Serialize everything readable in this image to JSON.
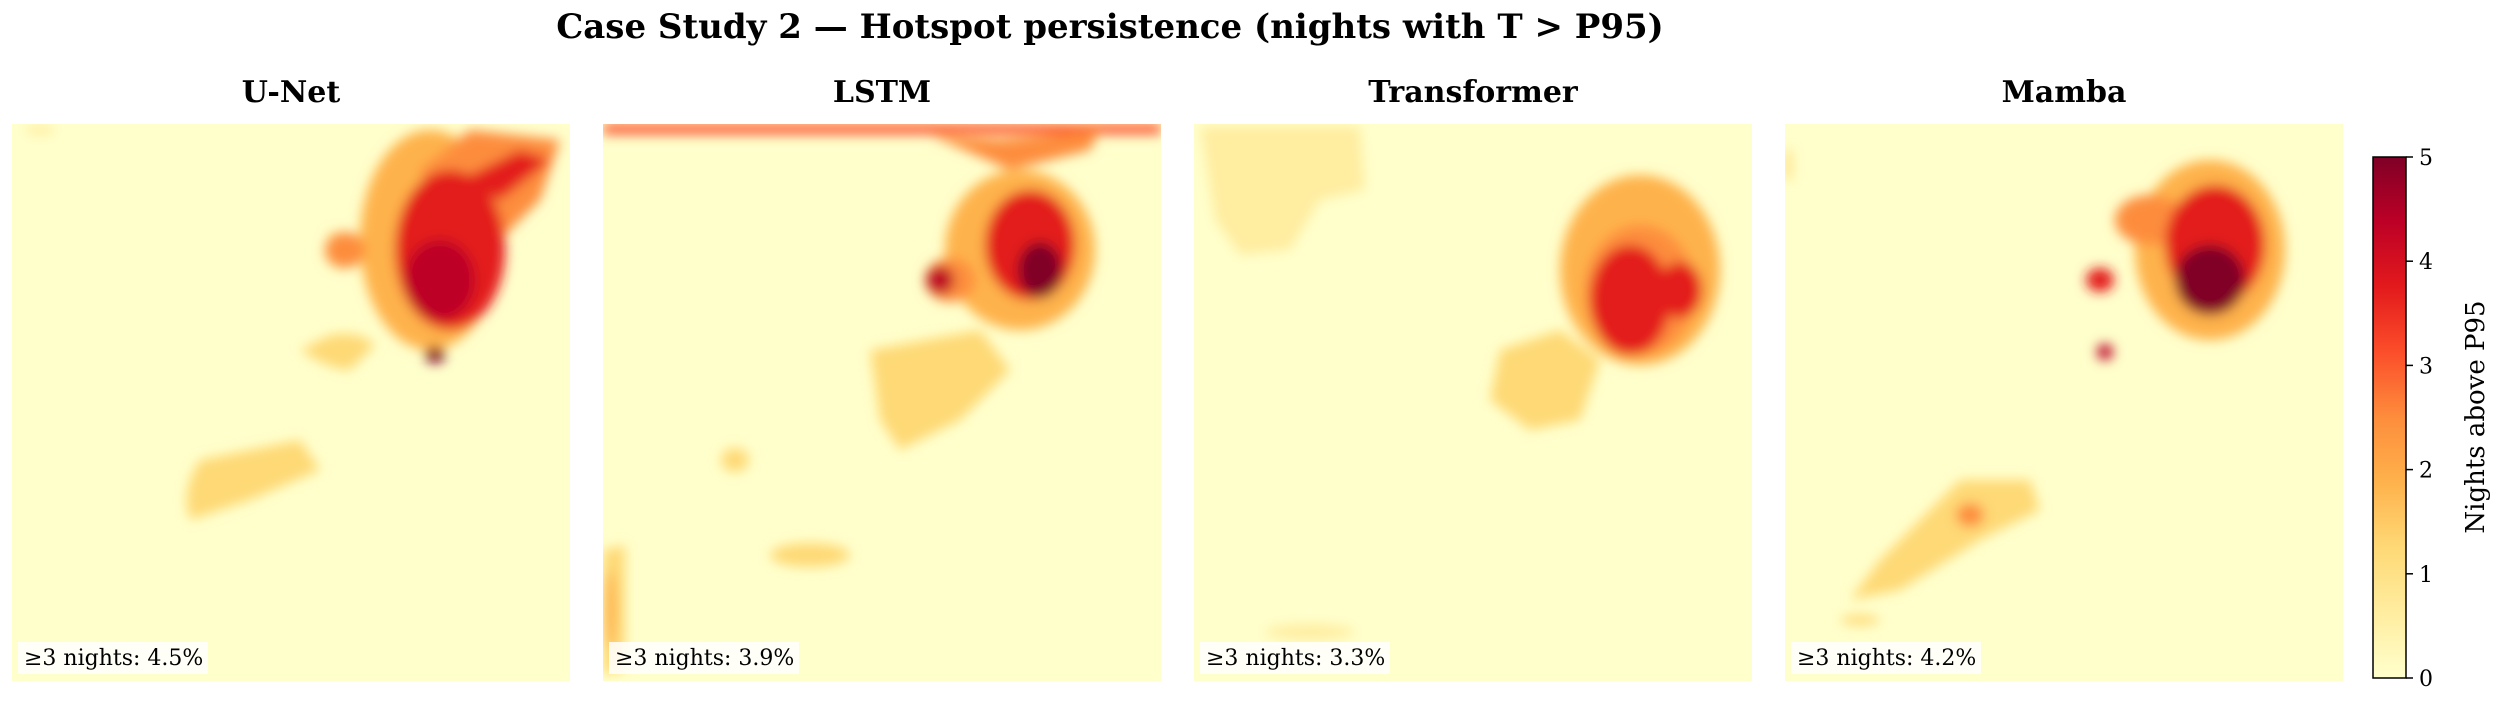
{
  "figure": {
    "title": "Case Study 2 — Hotspot persistence (nights with T > P95)"
  },
  "chart_data": {
    "type": "heatmap",
    "title": "Case Study 2 — Hotspot persistence (nights with T > P95)",
    "colormap": "YlOrRd",
    "colors": [
      "#ffffcc",
      "#ffeda0",
      "#fed976",
      "#feb24c",
      "#fd8d3c",
      "#fc4e2a",
      "#e31a1c",
      "#bd0026",
      "#800026"
    ],
    "value_range": [
      0,
      5
    ],
    "colorbar": {
      "label": "Nights above P95",
      "ticks": [
        "0",
        "1",
        "2",
        "3",
        "4",
        "5"
      ],
      "placement": "right"
    },
    "panels": [
      {
        "name": "U-Net",
        "annotation": "≥3 nights: 4.5%"
      },
      {
        "name": "LSTM",
        "annotation": "≥3 nights: 3.9%"
      },
      {
        "name": "Transformer",
        "annotation": "≥3 nights: 3.3%"
      },
      {
        "name": "Mamba",
        "annotation": "≥3 nights: 4.2%"
      }
    ]
  }
}
